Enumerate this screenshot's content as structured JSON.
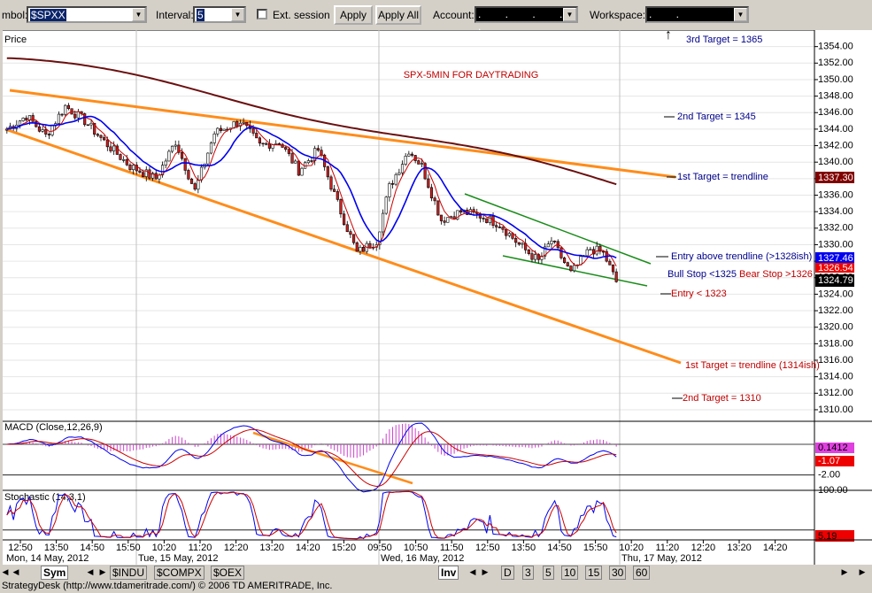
{
  "toolbar": {
    "symbol_label": "mbol:",
    "symbol_value": "$SPXX",
    "interval_label": "Interval:",
    "interval_value": "5",
    "ext_session_label": "Ext. session",
    "apply_label": "Apply",
    "apply_all_label": "Apply All",
    "account_label": "Account:",
    "account_value": ". . . . .",
    "workspace_label": "Workspace:",
    "workspace_value": ". ."
  },
  "bottom": {
    "tabs": [
      "Sym",
      "$INDU",
      "$COMPX",
      "$OEX"
    ],
    "inv_label": "Inv",
    "interval_tabs": [
      "D",
      "3",
      "5",
      "10",
      "15",
      "30",
      "60"
    ]
  },
  "status_text": "StrategyDesk (http://www.tdameritrade.com/) © 2006 TD AMERITRADE, Inc.",
  "colors": {
    "trendline": "#ff8c1a",
    "channel": "#1a8c1a",
    "ma_long": "#6b1010",
    "ma_blue": "#0000ee",
    "ma_red": "#cc0000",
    "macd_hist": "#cc44cc"
  },
  "chart_data": [
    {
      "type": "candlestick",
      "title": "SPX-5MIN FOR DAYTRADING",
      "ylabel": "Price",
      "ylim": [
        1308.6,
        1356
      ],
      "yticks": [
        1310,
        1312,
        1314,
        1316,
        1318,
        1320,
        1322,
        1324,
        1326,
        1328,
        1330,
        1332,
        1334,
        1336,
        1338,
        1340,
        1342,
        1344,
        1346,
        1348,
        1350,
        1352,
        1354
      ],
      "xtick_labels": [
        "12:50",
        "13:50",
        "14:50",
        "15:50",
        "10:20",
        "11:20",
        "12:20",
        "13:20",
        "14:20",
        "15:20",
        "09:50",
        "10:50",
        "11:50",
        "12:50",
        "13:50",
        "14:50",
        "15:50",
        "10:20",
        "11:20",
        "12:20",
        "13:20",
        "14:20"
      ],
      "date_labels": [
        "Mon, 14 May, 2012",
        "Tue, 15 May, 2012",
        "Wed, 16 May, 2012",
        "Thu, 17 May, 2012"
      ],
      "price_key": [
        {
          "x": 0,
          "y": 1344.0
        },
        {
          "x": 6,
          "y": 1345.6
        },
        {
          "x": 12,
          "y": 1343.2
        },
        {
          "x": 18,
          "y": 1346.8
        },
        {
          "x": 24,
          "y": 1345.0
        },
        {
          "x": 30,
          "y": 1342.5
        },
        {
          "x": 38,
          "y": 1339.5
        },
        {
          "x": 46,
          "y": 1338.0
        },
        {
          "x": 52,
          "y": 1342.5
        },
        {
          "x": 58,
          "y": 1336.5
        },
        {
          "x": 64,
          "y": 1343.5
        },
        {
          "x": 72,
          "y": 1345.0
        },
        {
          "x": 78,
          "y": 1342.0
        },
        {
          "x": 84,
          "y": 1342.5
        },
        {
          "x": 90,
          "y": 1339.0
        },
        {
          "x": 96,
          "y": 1341.5
        },
        {
          "x": 102,
          "y": 1335.0
        },
        {
          "x": 108,
          "y": 1329.0
        },
        {
          "x": 114,
          "y": 1330.5
        },
        {
          "x": 118,
          "y": 1337.0
        },
        {
          "x": 124,
          "y": 1341.5
        },
        {
          "x": 128,
          "y": 1339.5
        },
        {
          "x": 134,
          "y": 1333.0
        },
        {
          "x": 140,
          "y": 1334.0
        },
        {
          "x": 146,
          "y": 1333.5
        },
        {
          "x": 152,
          "y": 1332.5
        },
        {
          "x": 158,
          "y": 1330.0
        },
        {
          "x": 164,
          "y": 1328.0
        },
        {
          "x": 168,
          "y": 1330.5
        },
        {
          "x": 174,
          "y": 1326.5
        },
        {
          "x": 180,
          "y": 1329.5
        },
        {
          "x": 184,
          "y": 1329.0
        },
        {
          "x": 188,
          "y": 1325.5
        }
      ],
      "levels": {
        "last": "1324.79",
        "blue_ma": "1327.46",
        "red_ma": "1326.54",
        "long_ma": "1337.30"
      },
      "annotations": {
        "target3": "3rd Target = 1365",
        "target2_up": "2nd Target = 1345",
        "target1_up": "1st Target = trendline",
        "entry_above": "Entry above trendline (>1328ish)",
        "bull_stop": "Bull Stop <1325",
        "bear_stop": "Bear Stop >1326",
        "entry_below": "Entry < 1323",
        "target1_down": "1st Target = trendline (1314ish)",
        "target2_down": "2nd Target = 1310"
      }
    },
    {
      "type": "line",
      "title": "MACD (Close,12,26,9)",
      "ylim": [
        -3.0,
        1.5
      ],
      "yticks": [
        -2.0
      ],
      "values_shown": [
        "0.1412",
        "-1.07"
      ]
    },
    {
      "type": "line",
      "title": "Stochastic (14,3,1)",
      "ylim": [
        0,
        100
      ],
      "yticks": [
        100.0
      ],
      "values_shown": [
        "5.19"
      ]
    }
  ]
}
